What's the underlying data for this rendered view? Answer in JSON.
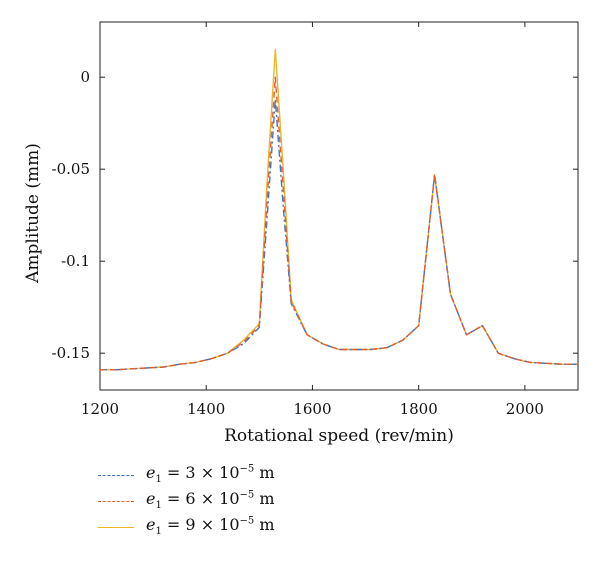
{
  "chart_data": {
    "type": "line",
    "title": "",
    "xlabel": "Rotational speed (rev/min)",
    "ylabel": "Amplitude (mm)",
    "xlim": [
      1200,
      2100
    ],
    "ylim": [
      -0.17,
      0.03
    ],
    "xticks": [
      "1200",
      "1400",
      "1600",
      "1800",
      "2000"
    ],
    "yticks": [
      "0",
      "-0.05",
      "-0.1",
      "-0.15"
    ],
    "grid": false,
    "legend_position": "bottom-left",
    "series": [
      {
        "name_parts": {
          "var": "e",
          "sub": "1",
          "text": " = 3 × 10",
          "exp": "−5",
          "unit": " m"
        },
        "color": "#4472c4",
        "style": "dashdot",
        "x": [
          1200,
          1230,
          1260,
          1290,
          1320,
          1350,
          1380,
          1410,
          1440,
          1470,
          1500,
          1515,
          1530,
          1545,
          1560,
          1590,
          1620,
          1650,
          1680,
          1710,
          1740,
          1770,
          1800,
          1830,
          1860,
          1890,
          1920,
          1950,
          1980,
          2010,
          2040,
          2070,
          2100
        ],
        "y": [
          -0.159,
          -0.159,
          -0.1585,
          -0.158,
          -0.1575,
          -0.156,
          -0.155,
          -0.153,
          -0.15,
          -0.145,
          -0.136,
          -0.075,
          -0.012,
          -0.07,
          -0.123,
          -0.14,
          -0.145,
          -0.148,
          -0.148,
          -0.148,
          -0.147,
          -0.143,
          -0.135,
          -0.053,
          -0.118,
          -0.14,
          -0.135,
          -0.15,
          -0.153,
          -0.155,
          -0.1555,
          -0.156,
          -0.156
        ]
      },
      {
        "name_parts": {
          "var": "e",
          "sub": "1",
          "text": " = 6 × 10",
          "exp": "−5",
          "unit": " m"
        },
        "color": "#e06030",
        "style": "dashed",
        "x": [
          1200,
          1230,
          1260,
          1290,
          1320,
          1350,
          1380,
          1410,
          1440,
          1470,
          1500,
          1515,
          1530,
          1545,
          1560,
          1590,
          1620,
          1650,
          1680,
          1710,
          1740,
          1770,
          1800,
          1830,
          1860,
          1890,
          1920,
          1950,
          1980,
          2010,
          2040,
          2070,
          2100
        ],
        "y": [
          -0.159,
          -0.159,
          -0.1585,
          -0.158,
          -0.1575,
          -0.156,
          -0.155,
          -0.153,
          -0.15,
          -0.144,
          -0.135,
          -0.065,
          0.0,
          -0.06,
          -0.122,
          -0.14,
          -0.145,
          -0.148,
          -0.148,
          -0.148,
          -0.147,
          -0.143,
          -0.135,
          -0.053,
          -0.118,
          -0.14,
          -0.135,
          -0.15,
          -0.153,
          -0.155,
          -0.1555,
          -0.156,
          -0.156
        ]
      },
      {
        "name_parts": {
          "var": "e",
          "sub": "1",
          "text": " = 9 × 10",
          "exp": "−5",
          "unit": " m"
        },
        "color": "#f0b428",
        "style": "solid",
        "x": [
          1200,
          1230,
          1260,
          1290,
          1320,
          1350,
          1380,
          1410,
          1440,
          1470,
          1500,
          1515,
          1530,
          1545,
          1560,
          1590,
          1620,
          1650,
          1680,
          1710,
          1740,
          1770,
          1800,
          1830,
          1860,
          1890,
          1920,
          1950,
          1980,
          2010,
          2040,
          2070,
          2100
        ],
        "y": [
          -0.159,
          -0.159,
          -0.1585,
          -0.158,
          -0.1575,
          -0.156,
          -0.155,
          -0.153,
          -0.15,
          -0.143,
          -0.134,
          -0.055,
          0.015,
          -0.05,
          -0.121,
          -0.14,
          -0.145,
          -0.148,
          -0.148,
          -0.148,
          -0.147,
          -0.143,
          -0.135,
          -0.053,
          -0.118,
          -0.14,
          -0.135,
          -0.15,
          -0.153,
          -0.155,
          -0.1555,
          -0.156,
          -0.156
        ]
      }
    ]
  }
}
